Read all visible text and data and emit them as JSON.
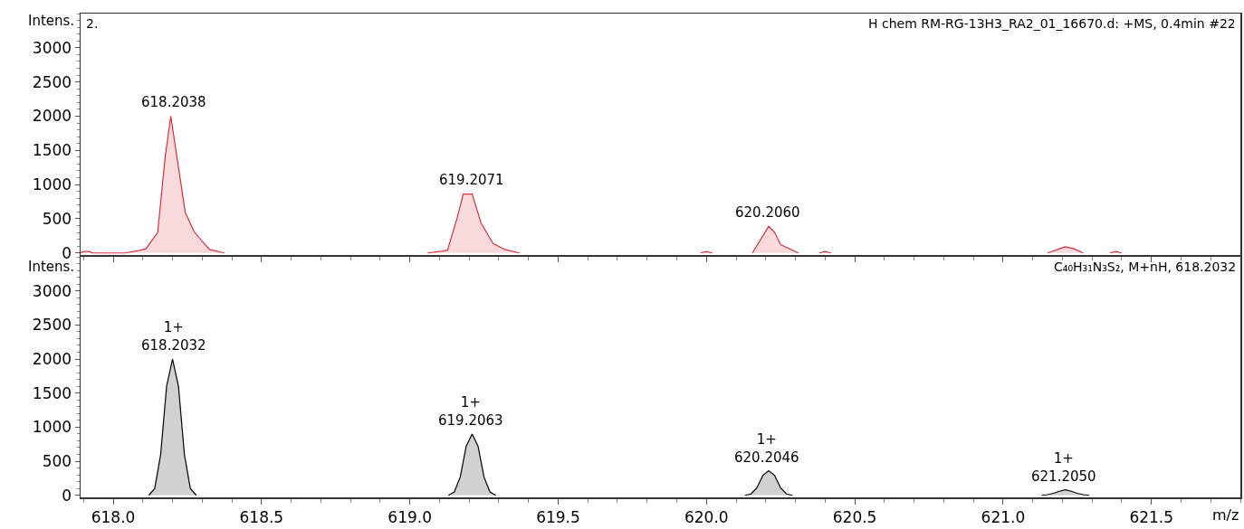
{
  "chart_data": [
    {
      "type": "area",
      "title": "2.",
      "subtitle": "H chem RM-RG-13H3_RA2_01_16670.d: +MS, 0.4min #22",
      "ylabel": "Intens.",
      "tick_labels": "y",
      "grid": false,
      "xlim": [
        617.89,
        621.8
      ],
      "xticks": [
        618,
        618.5,
        619,
        619.5,
        620,
        620.5,
        621,
        621.5
      ],
      "ylim": [
        -30,
        3500
      ],
      "yticks": [
        0,
        500,
        1000,
        1500,
        2000,
        2500,
        3000
      ],
      "series": [
        {
          "color": "#d9303c",
          "x": [
            617.89,
            617.9,
            617.92,
            617.93,
            618.04,
            618.08,
            618.11,
            618.15,
            618.175,
            618.194,
            618.215,
            618.243,
            618.273,
            618.3,
            618.325,
            618.375,
            618.38,
            619.06,
            619.1,
            619.127,
            619.16,
            619.18,
            619.21,
            619.24,
            619.28,
            619.32,
            619.37,
            619.38,
            619.98,
            620.0,
            620.02,
            620.03,
            620.155,
            620.19,
            620.21,
            620.23,
            620.25,
            620.31,
            620.32,
            620.38,
            620.4,
            620.42,
            620.43,
            621.15,
            621.19,
            621.21,
            621.24,
            621.27,
            621.28,
            621.36,
            621.38,
            621.4
          ],
          "values": [
            0,
            20,
            20,
            0,
            0,
            30,
            60,
            300,
            1400,
            2000,
            1400,
            590,
            310,
            170,
            50,
            0,
            null,
            0,
            20,
            40,
            520,
            860,
            860,
            440,
            140,
            50,
            0,
            null,
            0,
            20,
            0,
            null,
            0,
            250,
            390,
            300,
            120,
            0,
            null,
            0,
            20,
            0,
            null,
            0,
            60,
            90,
            60,
            0,
            null,
            0,
            20,
            0
          ]
        }
      ],
      "annotations": [
        {
          "text": "618.2038",
          "x": 618.2038,
          "y": 2000
        },
        {
          "text": "619.2071",
          "x": 619.2071,
          "y": 870
        },
        {
          "text": "620.2060",
          "x": 620.206,
          "y": 390
        }
      ]
    },
    {
      "type": "area",
      "subtitle": "C₄₀H₃₁N₃S₂, M+nH, 618.2032",
      "ylabel": "Intens.",
      "xlabel": "m/z",
      "grid": false,
      "xlim": [
        617.89,
        621.8
      ],
      "xticks": [
        {
          "value": 618,
          "label": "618.0"
        },
        {
          "value": 618.5,
          "label": "618.5"
        },
        {
          "value": 619,
          "label": "619.0"
        },
        {
          "value": 619.5,
          "label": "619.5"
        },
        {
          "value": 620,
          "label": "620.0"
        },
        {
          "value": 620.5,
          "label": "620.5"
        },
        {
          "value": 621,
          "label": "621.0"
        },
        {
          "value": 621.5,
          "label": "621.5"
        }
      ],
      "ylim": [
        -30,
        3500
      ],
      "yticks": [
        0,
        500,
        1000,
        1500,
        2000,
        2500,
        3000
      ],
      "series": [
        {
          "color": "#000000",
          "x": [
            618.12,
            618.14,
            618.16,
            618.18,
            618.2,
            618.22,
            618.24,
            618.26,
            618.28,
            618.29,
            619.13,
            619.15,
            619.17,
            619.19,
            619.21,
            619.23,
            619.25,
            619.27,
            619.29,
            619.3,
            620.13,
            620.15,
            620.17,
            620.19,
            620.21,
            620.23,
            620.25,
            620.27,
            620.29,
            620.3,
            621.13,
            621.15,
            621.17,
            621.19,
            621.21,
            621.23,
            621.25,
            621.27,
            621.29
          ],
          "values": [
            0,
            100,
            600,
            1600,
            2000,
            1600,
            600,
            100,
            0,
            null,
            0,
            50,
            270,
            720,
            900,
            720,
            270,
            50,
            0,
            null,
            0,
            20,
            110,
            290,
            360,
            290,
            110,
            20,
            0,
            null,
            0,
            10,
            30,
            60,
            80,
            60,
            30,
            10,
            0
          ]
        }
      ],
      "annotations": [
        {
          "text": "1+\n618.2032",
          "x": 618.2032,
          "y": 2000
        },
        {
          "text": "1+\n619.2063",
          "x": 619.2063,
          "y": 900
        },
        {
          "text": "1+\n620.2046",
          "x": 620.2046,
          "y": 360
        },
        {
          "text": "1+\n621.2050",
          "x": 621.205,
          "y": 80
        }
      ]
    }
  ]
}
